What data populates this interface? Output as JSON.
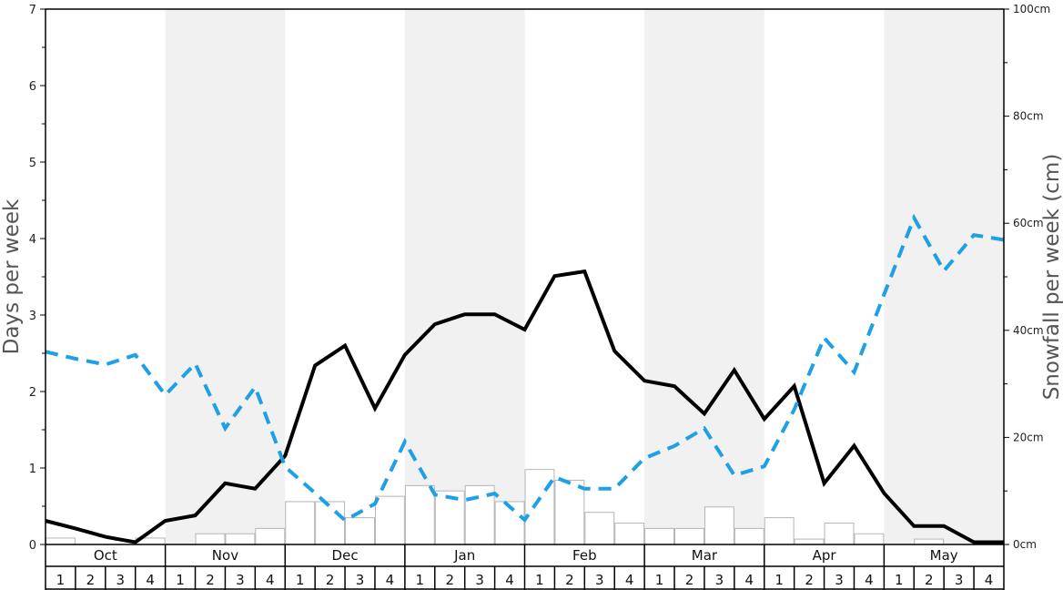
{
  "chart_data": {
    "type": "bar",
    "title": "",
    "ylabel_left": "Days per week",
    "ylabel_right": "Snowfall per week (cm)",
    "y_left_range": [
      0,
      7
    ],
    "y_left_ticks": [
      "0",
      "1",
      "2",
      "3",
      "4",
      "5",
      "6",
      "7"
    ],
    "y_right_range": [
      0,
      100
    ],
    "y_right_ticks": [
      "0cm",
      "20cm",
      "40cm",
      "60cm",
      "80cm",
      "100cm"
    ],
    "months": [
      "Oct",
      "Nov",
      "Dec",
      "Jan",
      "Feb",
      "Mar",
      "Apr",
      "May"
    ],
    "weeks": [
      "1",
      "2",
      "3",
      "4"
    ],
    "shaded_months": [
      "Nov",
      "Jan",
      "Mar",
      "May"
    ],
    "grid": false,
    "legend": "none",
    "series": [
      {
        "kind": "bar",
        "axis": "right",
        "values": [
          1.2,
          0,
          0,
          1.2,
          0,
          2.0,
          2.0,
          3.0,
          8.0,
          8.0,
          5.0,
          9.0,
          11.0,
          10.0,
          11.0,
          8.0,
          14.0,
          12.0,
          6.0,
          4.0,
          3.0,
          3.0,
          7.0,
          3.0,
          5.0,
          1.0,
          4.0,
          2.0,
          0,
          1.0,
          0,
          0
        ]
      },
      {
        "kind": "line",
        "style": "solid",
        "color": "#000000",
        "axis": "left",
        "values": [
          0.31,
          0.21,
          0.1,
          0.03,
          0.31,
          0.38,
          0.8,
          0.73,
          1.16,
          2.34,
          2.6,
          1.78,
          2.48,
          2.88,
          3.01,
          3.01,
          2.81,
          3.51,
          3.57,
          2.53,
          2.14,
          2.07,
          1.71,
          2.28,
          1.64,
          2.07,
          0.8,
          1.29,
          0.67,
          0.24,
          0.24,
          0.03,
          0.03
        ]
      },
      {
        "kind": "line",
        "style": "dashed",
        "color": "#1ea0e6",
        "axis": "right",
        "values": [
          36,
          34.7,
          33.6,
          35.4,
          27.9,
          33.8,
          21.7,
          29.4,
          14.5,
          9.6,
          4.5,
          7.6,
          19.2,
          9.3,
          8.3,
          9.5,
          4.6,
          12.6,
          10.4,
          10.4,
          16.1,
          18.4,
          21.7,
          12.9,
          14.6,
          25.2,
          38.6,
          32.2,
          46.7,
          61.0,
          51.1,
          57.8,
          56.9
        ]
      }
    ]
  }
}
